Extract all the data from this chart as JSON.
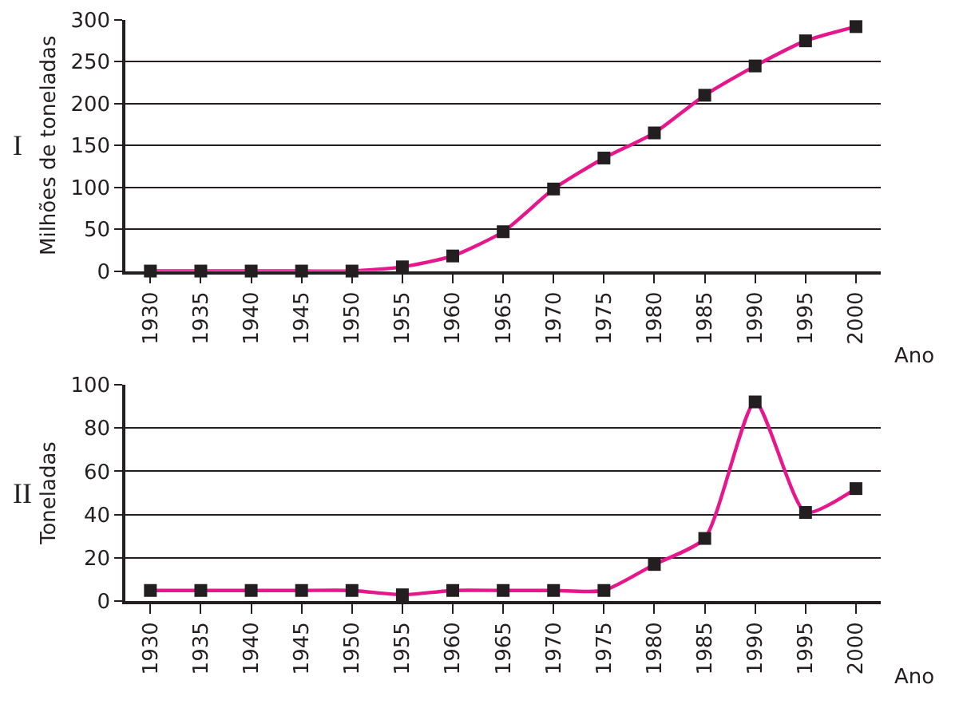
{
  "chart_data": [
    {
      "type": "line",
      "ylabel": "Milhões de toneladas",
      "xlabel": "Ano",
      "annotations": [
        "I"
      ],
      "categories": [
        "1930",
        "1935",
        "1940",
        "1945",
        "1950",
        "1955",
        "1960",
        "1965",
        "1970",
        "1975",
        "1980",
        "1985",
        "1990",
        "1995",
        "2000"
      ],
      "series": [
        {
          "color": "#e8168c",
          "values": [
            0,
            0,
            0,
            0,
            0,
            5,
            18,
            47,
            98,
            135,
            165,
            210,
            245,
            275,
            292
          ]
        }
      ],
      "ylim": [
        0,
        300
      ],
      "yticks": [
        0,
        50,
        100,
        150,
        200,
        250,
        300
      ],
      "grid": "y",
      "marker": "square",
      "line_style": "solid"
    },
    {
      "type": "line",
      "ylabel": "Toneladas",
      "xlabel": "Ano",
      "annotations": [
        "II"
      ],
      "categories": [
        "1930",
        "1935",
        "1940",
        "1945",
        "1950",
        "1955",
        "1960",
        "1965",
        "1970",
        "1975",
        "1980",
        "1985",
        "1990",
        "1995",
        "2000"
      ],
      "series": [
        {
          "color": "#e8168c",
          "values": [
            5,
            5,
            5,
            5,
            5,
            3,
            5,
            5,
            5,
            5,
            17,
            29,
            92,
            41,
            52
          ]
        }
      ],
      "ylim": [
        0,
        100
      ],
      "yticks": [
        0,
        20,
        40,
        60,
        80,
        100
      ],
      "grid": "y",
      "marker": "square",
      "line_style": "solid"
    }
  ]
}
